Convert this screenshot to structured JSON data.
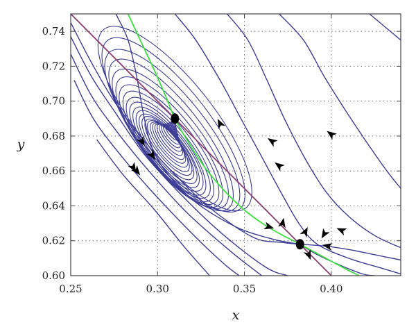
{
  "chart_data": {
    "type": "phase-portrait",
    "title": "",
    "xlabel": "x",
    "ylabel": "y",
    "xlim": [
      0.25,
      0.44
    ],
    "ylim": [
      0.6,
      0.75
    ],
    "grid": "dotted",
    "x_ticks": [
      "0.25",
      "0.30",
      "0.35",
      "0.40"
    ],
    "x_tick_values": [
      0.25,
      0.3,
      0.35,
      0.4
    ],
    "y_ticks": [
      "0.60",
      "0.62",
      "0.64",
      "0.66",
      "0.68",
      "0.70",
      "0.72",
      "0.74"
    ],
    "y_tick_values": [
      0.6,
      0.62,
      0.64,
      0.66,
      0.68,
      0.7,
      0.72,
      0.74
    ],
    "equilibria": [
      {
        "x": 0.31,
        "y": 0.69
      },
      {
        "x": 0.382,
        "y": 0.618
      }
    ],
    "nullclines": [
      {
        "color": "#3ee23e",
        "points": [
          [
            0.283,
            0.75
          ],
          [
            0.29,
            0.735
          ],
          [
            0.298,
            0.718
          ],
          [
            0.305,
            0.702
          ],
          [
            0.31,
            0.69
          ],
          [
            0.318,
            0.676
          ],
          [
            0.328,
            0.661
          ],
          [
            0.34,
            0.647
          ],
          [
            0.352,
            0.636
          ],
          [
            0.365,
            0.627
          ],
          [
            0.382,
            0.618
          ],
          [
            0.395,
            0.611
          ],
          [
            0.408,
            0.604
          ],
          [
            0.416,
            0.6
          ]
        ]
      },
      {
        "color": "#8b3f6e",
        "points": [
          [
            0.25,
            0.75
          ],
          [
            0.31,
            0.69
          ],
          [
            0.382,
            0.618
          ],
          [
            0.4,
            0.6
          ]
        ]
      }
    ],
    "spiral": {
      "center": [
        0.31,
        0.69
      ],
      "major_axis_dir": [
        0.8,
        -1.0
      ],
      "axis_ratio": 0.33,
      "rotation_deg": 28,
      "major_semi_axes": [
        0.0655,
        0.0615,
        0.0575,
        0.0535,
        0.0495,
        0.046,
        0.0425,
        0.039,
        0.0358,
        0.0328,
        0.0299,
        0.0272,
        0.0247,
        0.0223,
        0.02,
        0.018,
        0.016,
        0.0142,
        0.0126,
        0.011,
        0.0095,
        0.0082,
        0.007,
        0.0058,
        0.0047,
        0.0037,
        0.0028,
        0.002,
        0.0013
      ]
    },
    "trajectories": [
      [
        [
          0.25,
          0.745
        ],
        [
          0.262,
          0.722
        ],
        [
          0.275,
          0.7
        ],
        [
          0.29,
          0.68
        ],
        [
          0.308,
          0.66
        ],
        [
          0.33,
          0.639
        ],
        [
          0.355,
          0.622
        ],
        [
          0.372,
          0.619
        ],
        [
          0.382,
          0.618
        ]
      ],
      [
        [
          0.276,
          0.75
        ],
        [
          0.283,
          0.735
        ],
        [
          0.288,
          0.714
        ],
        [
          0.292,
          0.692
        ],
        [
          0.297,
          0.673
        ],
        [
          0.306,
          0.658
        ],
        [
          0.322,
          0.642
        ],
        [
          0.345,
          0.628
        ],
        [
          0.366,
          0.621
        ],
        [
          0.382,
          0.618
        ]
      ],
      [
        [
          0.25,
          0.737
        ],
        [
          0.262,
          0.714
        ],
        [
          0.276,
          0.693
        ],
        [
          0.292,
          0.67
        ],
        [
          0.312,
          0.648
        ],
        [
          0.336,
          0.625
        ],
        [
          0.362,
          0.605
        ],
        [
          0.375,
          0.6
        ]
      ],
      [
        [
          0.25,
          0.727
        ],
        [
          0.262,
          0.703
        ],
        [
          0.277,
          0.682
        ],
        [
          0.295,
          0.66
        ],
        [
          0.317,
          0.636
        ],
        [
          0.342,
          0.614
        ],
        [
          0.36,
          0.6
        ]
      ],
      [
        [
          0.252,
          0.712
        ],
        [
          0.263,
          0.69
        ],
        [
          0.278,
          0.67
        ],
        [
          0.297,
          0.648
        ],
        [
          0.32,
          0.624
        ],
        [
          0.338,
          0.607
        ],
        [
          0.347,
          0.6
        ]
      ],
      [
        [
          0.265,
          0.678
        ],
        [
          0.28,
          0.658
        ],
        [
          0.298,
          0.638
        ],
        [
          0.315,
          0.617
        ],
        [
          0.33,
          0.6
        ]
      ],
      [
        [
          0.31,
          0.75
        ],
        [
          0.322,
          0.735
        ],
        [
          0.336,
          0.712
        ],
        [
          0.348,
          0.69
        ],
        [
          0.36,
          0.668
        ],
        [
          0.372,
          0.646
        ],
        [
          0.382,
          0.629
        ],
        [
          0.392,
          0.618
        ],
        [
          0.41,
          0.61
        ],
        [
          0.43,
          0.604
        ],
        [
          0.44,
          0.601
        ]
      ],
      [
        [
          0.34,
          0.75
        ],
        [
          0.352,
          0.735
        ],
        [
          0.363,
          0.712
        ],
        [
          0.373,
          0.69
        ],
        [
          0.385,
          0.667
        ],
        [
          0.397,
          0.648
        ],
        [
          0.41,
          0.634
        ],
        [
          0.425,
          0.623
        ],
        [
          0.44,
          0.616
        ]
      ],
      [
        [
          0.37,
          0.75
        ],
        [
          0.384,
          0.735
        ],
        [
          0.396,
          0.714
        ],
        [
          0.408,
          0.695
        ],
        [
          0.42,
          0.677
        ],
        [
          0.432,
          0.66
        ],
        [
          0.44,
          0.65
        ]
      ],
      [
        [
          0.422,
          0.75
        ],
        [
          0.44,
          0.735
        ]
      ],
      [
        [
          0.44,
          0.609
        ],
        [
          0.425,
          0.612
        ],
        [
          0.41,
          0.615
        ],
        [
          0.396,
          0.617
        ],
        [
          0.382,
          0.618
        ]
      ],
      [
        [
          0.382,
          0.618
        ],
        [
          0.392,
          0.612
        ],
        [
          0.405,
          0.606
        ],
        [
          0.418,
          0.601
        ],
        [
          0.425,
          0.6
        ]
      ]
    ],
    "arrows": [
      {
        "x": 0.291,
        "y": 0.677,
        "dx": 0.6,
        "dy": -1.0
      },
      {
        "x": 0.297,
        "y": 0.669,
        "dx": 0.7,
        "dy": -1.0
      },
      {
        "x": 0.286,
        "y": 0.662,
        "dx": 0.6,
        "dy": -1.0
      },
      {
        "x": 0.288,
        "y": 0.66,
        "dx": 0.8,
        "dy": -1.0
      },
      {
        "x": 0.336,
        "y": 0.687,
        "dx": -0.5,
        "dy": 1.0
      },
      {
        "x": 0.366,
        "y": 0.677,
        "dx": -0.9,
        "dy": 0.6
      },
      {
        "x": 0.37,
        "y": 0.663,
        "dx": -0.8,
        "dy": 0.6
      },
      {
        "x": 0.4,
        "y": 0.681,
        "dx": -0.8,
        "dy": 0.6
      },
      {
        "x": 0.364,
        "y": 0.628,
        "dx": 1.0,
        "dy": -0.3
      },
      {
        "x": 0.372,
        "y": 0.63,
        "dx": 0.2,
        "dy": 1.0
      },
      {
        "x": 0.385,
        "y": 0.625,
        "dx": 0.5,
        "dy": 1.0
      },
      {
        "x": 0.396,
        "y": 0.624,
        "dx": -0.6,
        "dy": -1.0
      },
      {
        "x": 0.406,
        "y": 0.626,
        "dx": -0.9,
        "dy": 0.4
      },
      {
        "x": 0.398,
        "y": 0.617,
        "dx": -1.0,
        "dy": 0.2
      },
      {
        "x": 0.387,
        "y": 0.612,
        "dx": 0.4,
        "dy": -1.0
      }
    ],
    "colors": {
      "trajectory": "#3c3c96",
      "axes": "#444444",
      "grid": "#555555",
      "point": "#000000",
      "arrow": "#000000"
    }
  }
}
